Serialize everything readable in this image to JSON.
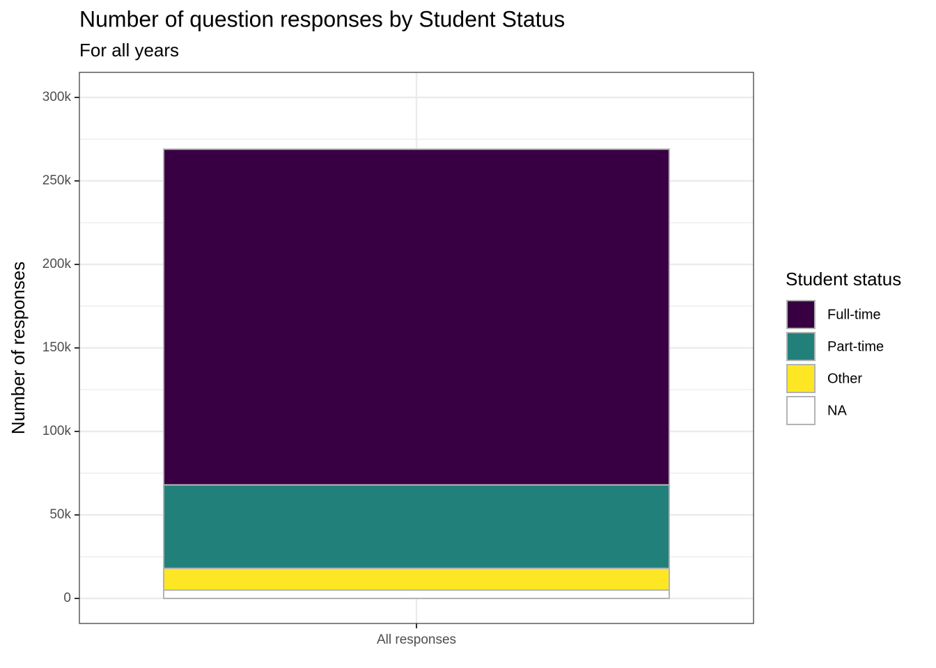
{
  "chart_data": {
    "type": "stacked_bar",
    "title": "Number of question responses by Student Status",
    "subtitle": "For all years",
    "y_label": "Number of responses",
    "legend_title": "Student status",
    "categories": [
      "All responses"
    ],
    "series": [
      {
        "name": "NA",
        "color": "#ffffff",
        "values": [
          5000
        ]
      },
      {
        "name": "Other",
        "color": "#fde725",
        "values": [
          13000
        ]
      },
      {
        "name": "Part-time",
        "color": "#21817a",
        "values": [
          50000
        ]
      },
      {
        "name": "Full-time",
        "color": "#380042",
        "values": [
          201000
        ]
      }
    ],
    "legend_order": [
      "Full-time",
      "Part-time",
      "Other",
      "NA"
    ],
    "ylim": [
      -15000,
      315000
    ],
    "yticks": [
      0,
      {
        "value": 50000,
        "label": "50k"
      },
      {
        "value": 100000,
        "label": "100k"
      },
      {
        "value": 150000,
        "label": "150k"
      },
      {
        "value": 200000,
        "label": "200k"
      },
      {
        "value": 250000,
        "label": "250k"
      },
      {
        "value": 300000,
        "label": "300k"
      }
    ],
    "grid": true
  }
}
